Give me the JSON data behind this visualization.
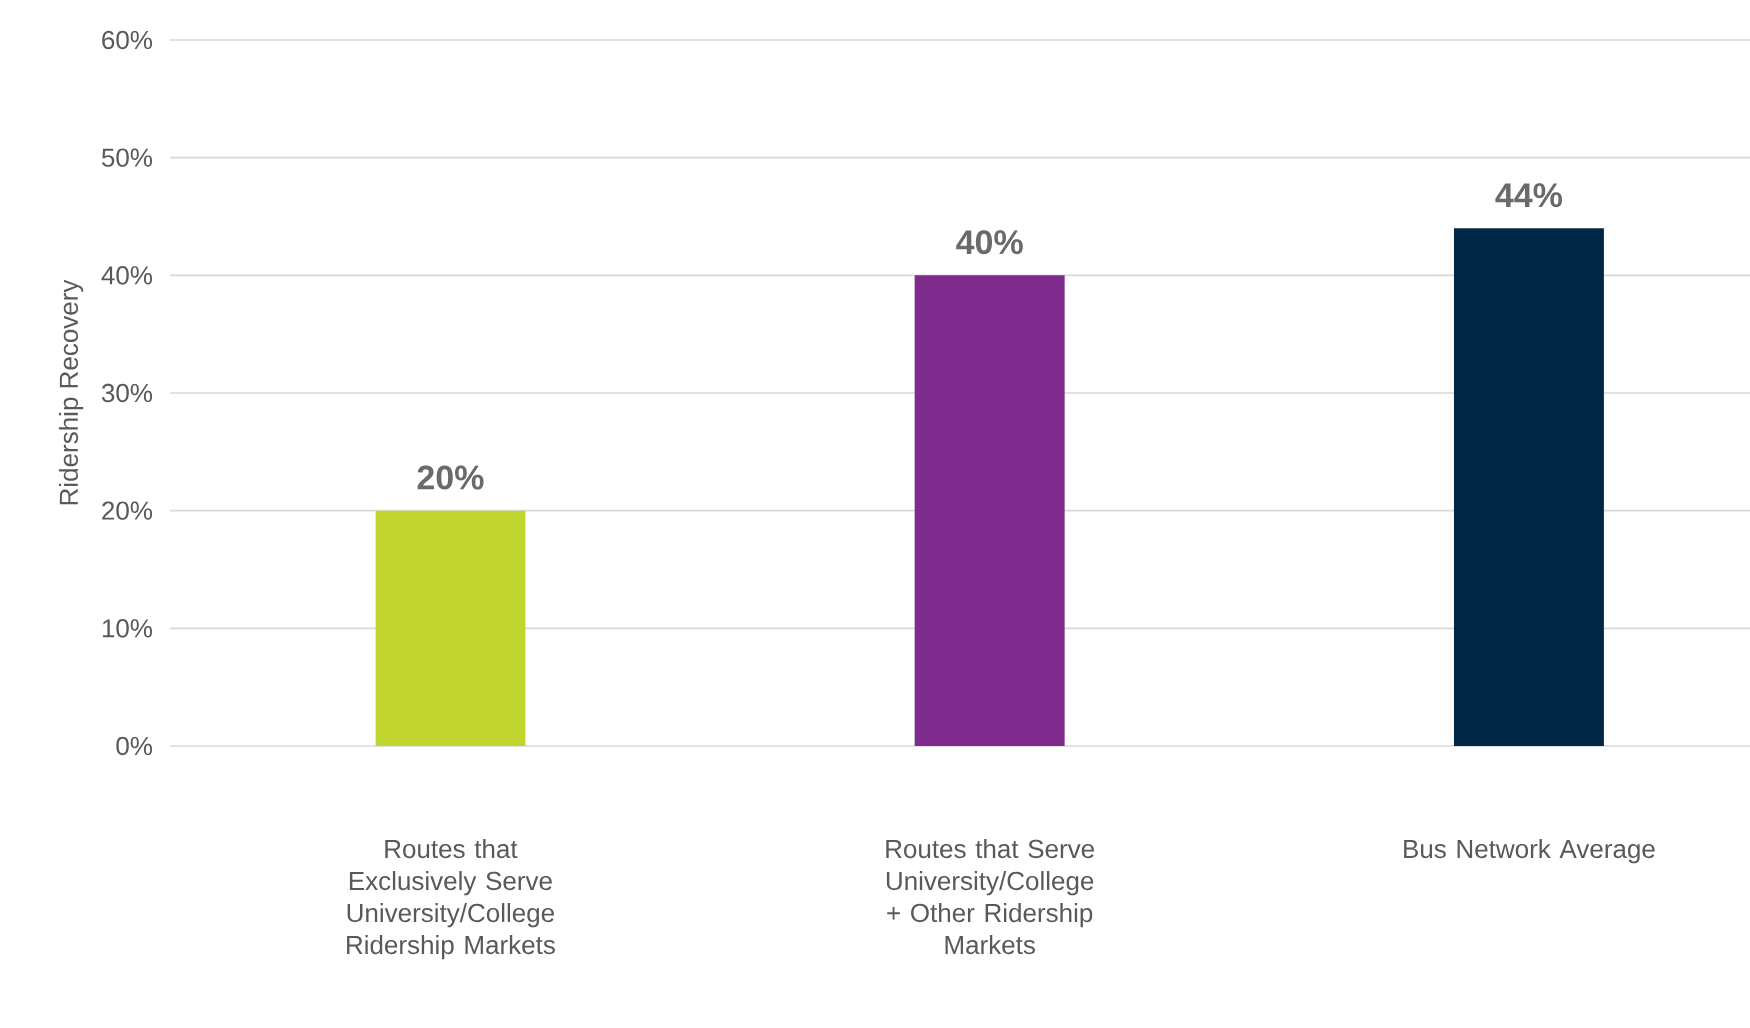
{
  "chart_data": {
    "type": "bar",
    "ylabel": "Ridership Recovery",
    "categories": [
      "Routes that Exclusively Serve University/College Ridership Markets",
      "Routes that Serve University/College + Other Ridership Markets",
      "Bus Network Average"
    ],
    "values": [
      20,
      40,
      44
    ],
    "colors": [
      "#c0d530",
      "#7f2b8e",
      "#002846"
    ],
    "value_labels": [
      "20%",
      "40%",
      "44%"
    ],
    "ylim": [
      0,
      60
    ],
    "yticks": [
      {
        "value": 0,
        "label": "0%"
      },
      {
        "value": 10,
        "label": "10%"
      },
      {
        "value": 20,
        "label": "20%"
      },
      {
        "value": 30,
        "label": "30%"
      },
      {
        "value": 40,
        "label": "40%"
      },
      {
        "value": 50,
        "label": "50%"
      },
      {
        "value": 60,
        "label": "60%"
      }
    ],
    "grid": "y"
  }
}
